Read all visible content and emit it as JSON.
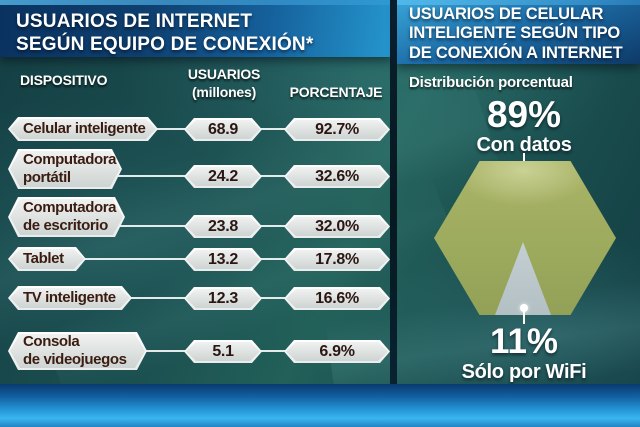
{
  "left_panel": {
    "title_line1": "USUARIOS DE INTERNET",
    "title_line2": "SEGÚN EQUIPO DE CONEXIÓN*",
    "columns": {
      "device": "DISPOSITIVO",
      "users_line1": "USUARIOS",
      "users_line2": "(millones)",
      "percentage": "PORCENTAJE"
    },
    "rows": [
      {
        "label1": "Celular inteligente",
        "label2": "",
        "users": "68.9",
        "pct": "92.7%"
      },
      {
        "label1": "Computadora",
        "label2": "portátil",
        "users": "24.2",
        "pct": "32.6%"
      },
      {
        "label1": "Computadora",
        "label2": "de escritorio",
        "users": "23.8",
        "pct": "32.0%"
      },
      {
        "label1": "Tablet",
        "label2": "",
        "users": "13.2",
        "pct": "17.8%"
      },
      {
        "label1": "TV inteligente",
        "label2": "",
        "users": "12.3",
        "pct": "16.6%"
      },
      {
        "label1": "Consola",
        "label2": "de videojuegos",
        "users": "5.1",
        "pct": "6.9%"
      }
    ]
  },
  "right_panel": {
    "title_line1": "USUARIOS DE CELULAR",
    "title_line2": "INTELIGENTE SEGÚN TIPO",
    "title_line3": "DE CONEXIÓN A INTERNET",
    "subtitle": "Distribución porcentual",
    "with_data": {
      "value": "89%",
      "label": "Con datos"
    },
    "wifi_only": {
      "value": "11%",
      "label": "Sólo por WiFi"
    }
  },
  "colors": {
    "background_teal": "#1b4e4f",
    "header_blue_dark": "#0f4070",
    "header_blue_light": "#2596cd",
    "box_gray": "#dde1e0",
    "device_text": "#3a1c10",
    "hexagon_olive": "#9dab5e",
    "triangle_gray": "#b4c1c9",
    "bottom_band_blue": "#2492d4"
  },
  "chart_data": [
    {
      "type": "table",
      "title": "USUARIOS DE INTERNET SEGÚN EQUIPO DE CONEXIÓN*",
      "columns": [
        "DISPOSITIVO",
        "USUARIOS (millones)",
        "PORCENTAJE"
      ],
      "rows": [
        [
          "Celular inteligente",
          68.9,
          92.7
        ],
        [
          "Computadora portátil",
          24.2,
          32.6
        ],
        [
          "Computadora de escritorio",
          23.8,
          32.0
        ],
        [
          "Tablet",
          13.2,
          17.8
        ],
        [
          "TV inteligente",
          12.3,
          16.6
        ],
        [
          "Consola de videojuegos",
          5.1,
          6.9
        ]
      ]
    },
    {
      "type": "pie",
      "title": "USUARIOS DE CELULAR INTELIGENTE SEGÚN TIPO DE CONEXIÓN A INTERNET",
      "subtitle": "Distribución porcentual",
      "categories": [
        "Con datos",
        "Sólo por WiFi"
      ],
      "values": [
        89,
        11
      ],
      "unit": "percent",
      "legend_position": "none"
    }
  ]
}
